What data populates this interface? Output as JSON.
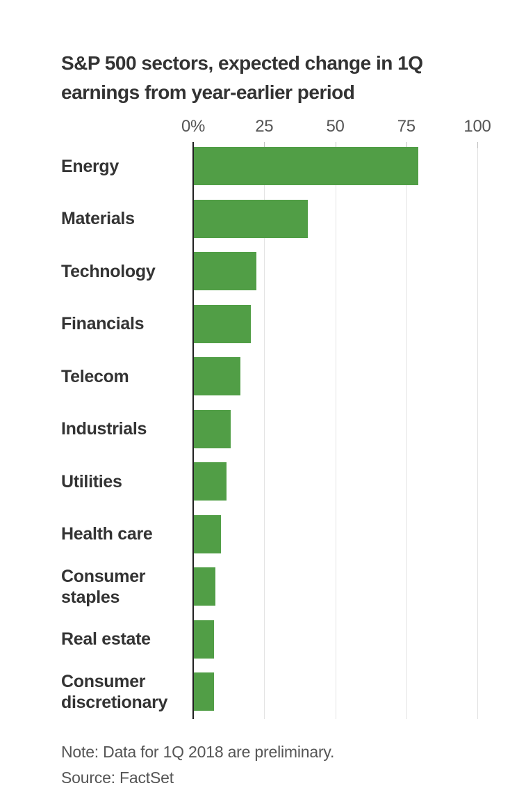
{
  "header": {
    "title": "S&P 500 sectors, expected change in 1Q earnings from year-earlier period"
  },
  "footer": {
    "note": "Note: Data for 1Q 2018 are preliminary.",
    "source": "Source: FactSet"
  },
  "colors": {
    "bar": "#519e46",
    "axis_line": "#1f1f1f",
    "gridline": "#e3e3e3",
    "tick": "#c2c2c2",
    "title_text": "#333333",
    "label_text": "#333333",
    "muted_text": "#555555",
    "background": "#ffffff"
  },
  "chart_data": {
    "type": "bar",
    "orientation": "horizontal",
    "title": "S&P 500 sectors, expected change in 1Q earnings from year-earlier period",
    "categories": [
      "Energy",
      "Materials",
      "Technology",
      "Financials",
      "Telecom",
      "Industrials",
      "Utilities",
      "Health care",
      "Consumer staples",
      "Real estate",
      "Consumer discretionary"
    ],
    "values": [
      79,
      40,
      22,
      20,
      16.5,
      13,
      11.5,
      9.5,
      7.5,
      7,
      7
    ],
    "unit": "%",
    "xlim": [
      0,
      100
    ],
    "x_tick_values": [
      0,
      25,
      50,
      75,
      100
    ],
    "x_ticks": [
      "0%",
      "25",
      "50",
      "75",
      "100"
    ],
    "grid": true,
    "legend": "none",
    "note": "Note: Data for 1Q 2018 are preliminary.",
    "source": "Source: FactSet"
  }
}
